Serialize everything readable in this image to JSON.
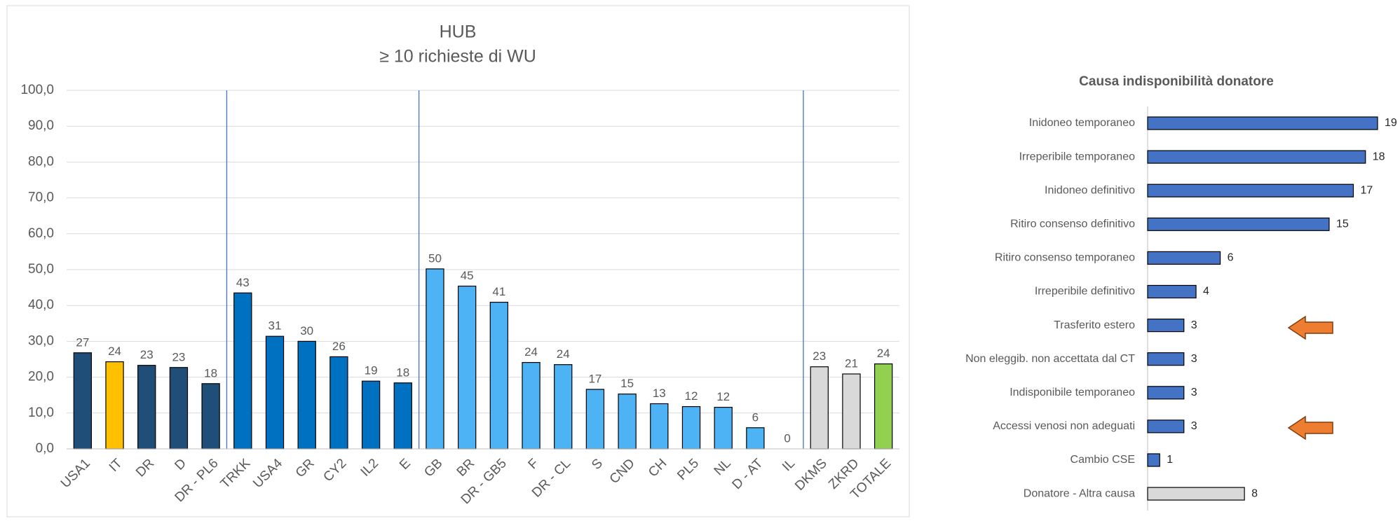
{
  "chart_data": [
    {
      "type": "bar",
      "title": "HUB",
      "subtitle": "≥ 10 richieste di WU",
      "categories": [
        "USA1",
        "IT",
        "DR",
        "D",
        "DR - PL6",
        "TRKK",
        "USA4",
        "GR",
        "CY2",
        "IL2",
        "E",
        "GB",
        "BR",
        "DR - GB5",
        "F",
        "DR - CL",
        "S",
        "CND",
        "CH",
        "PL5",
        "NL",
        "D - AT",
        "IL",
        "DKMS",
        "ZKRD",
        "TOTALE"
      ],
      "values": [
        26.8,
        24.3,
        23.3,
        22.7,
        18.2,
        43.5,
        31.4,
        30.0,
        25.7,
        18.9,
        18.4,
        50.2,
        45.4,
        40.9,
        24.1,
        23.5,
        16.6,
        15.3,
        12.6,
        11.8,
        11.6,
        5.9,
        0,
        22.9,
        20.9,
        23.7
      ],
      "value_labels": [
        "27",
        "24",
        "23",
        "23",
        "18",
        "43",
        "31",
        "30",
        "26",
        "19",
        "18",
        "50",
        "45",
        "41",
        "24",
        "24",
        "17",
        "15",
        "13",
        "12",
        "12",
        "6",
        "0",
        "23",
        "21",
        "24"
      ],
      "colors": [
        "#1f4e79",
        "#ffc000",
        "#1f4e79",
        "#1f4e79",
        "#1f4e79",
        "#0070c0",
        "#0070c0",
        "#0070c0",
        "#0070c0",
        "#0070c0",
        "#0070c0",
        "#4db3f5",
        "#4db3f5",
        "#4db3f5",
        "#4db3f5",
        "#4db3f5",
        "#4db3f5",
        "#4db3f5",
        "#4db3f5",
        "#4db3f5",
        "#4db3f5",
        "#4db3f5",
        "#4db3f5",
        "#d9d9d9",
        "#d9d9d9",
        "#92d050"
      ],
      "ylim": [
        0,
        100
      ],
      "yticks": [
        {
          "value": 0,
          "label": "0,0"
        },
        {
          "value": 10,
          "label": "10,0"
        },
        {
          "value": 20,
          "label": "20,0"
        },
        {
          "value": 30,
          "label": "30,0"
        },
        {
          "value": 40,
          "label": "40,0"
        },
        {
          "value": 50,
          "label": "50,0"
        },
        {
          "value": 60,
          "label": "60,0"
        },
        {
          "value": 70,
          "label": "70,0"
        },
        {
          "value": 80,
          "label": "80,0"
        },
        {
          "value": 90,
          "label": "90,0"
        },
        {
          "value": 100,
          "label": "100,0"
        }
      ],
      "grid": true
    },
    {
      "type": "hbar",
      "title": "Causa indisponibilità donatore",
      "categories": [
        "Inidoneo temporaneo",
        "Irreperibile temporaneo",
        "Inidoneo definitivo",
        "Ritiro consenso definitivo",
        "Ritiro consenso temporaneo",
        "Irreperibile definitivo",
        "Trasferito estero",
        "Non eleggib. non accettata dal CT",
        "Indisponibile temporaneo",
        "Accessi venosi non adeguati",
        "Cambio CSE",
        "Donatore - Altra causa"
      ],
      "values": [
        19,
        18,
        17,
        15,
        6,
        4,
        3,
        3,
        3,
        3,
        1,
        8
      ],
      "colors": [
        "#4472c4",
        "#4472c4",
        "#4472c4",
        "#4472c4",
        "#4472c4",
        "#4472c4",
        "#4472c4",
        "#4472c4",
        "#4472c4",
        "#4472c4",
        "#4472c4",
        "#d9d9d9"
      ]
    }
  ]
}
